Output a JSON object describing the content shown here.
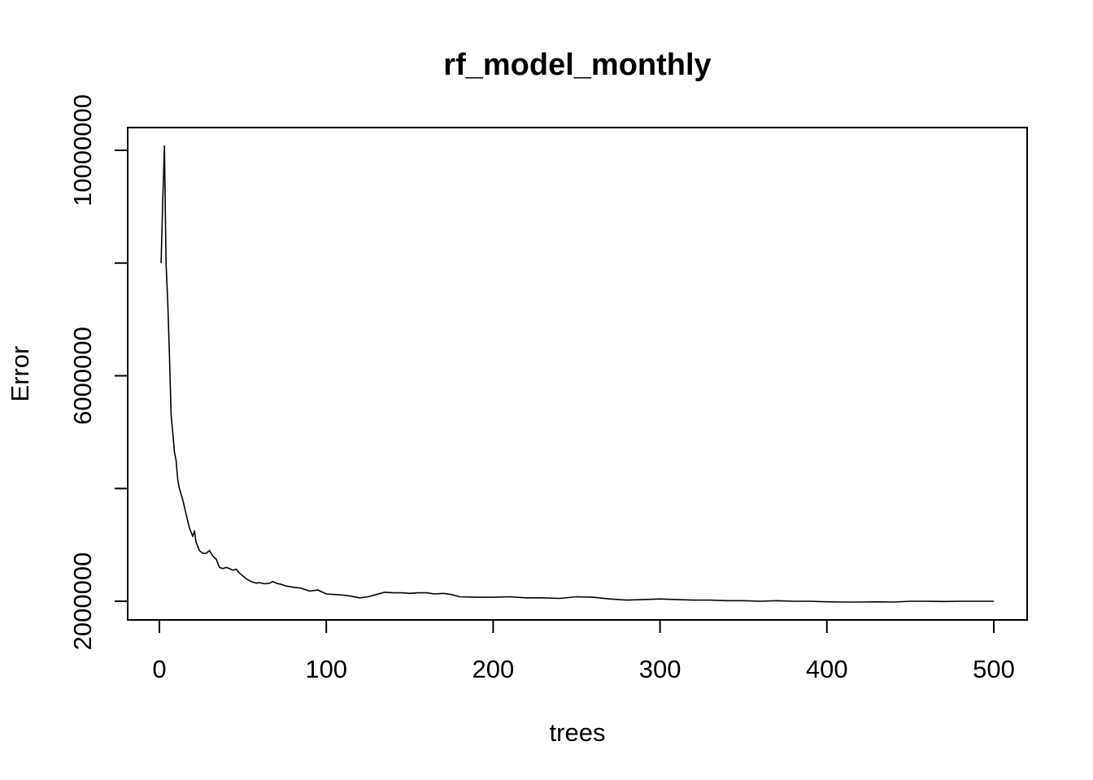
{
  "chart_data": {
    "type": "line",
    "title": "rf_model_monthly",
    "xlabel": "trees",
    "ylabel": "Error",
    "xlim": [
      0,
      500
    ],
    "ylim": [
      2000000,
      10000000
    ],
    "x_ticks": [
      0,
      100,
      200,
      300,
      400,
      500
    ],
    "x_tick_labels": [
      "0",
      "100",
      "200",
      "300",
      "400",
      "500"
    ],
    "y_ticks": [
      2000000,
      4000000,
      6000000,
      8000000,
      10000000
    ],
    "y_tick_labels": [
      "2000000",
      "",
      "6000000",
      "",
      "10000000"
    ],
    "grid": false,
    "legend": "none",
    "series": [
      {
        "x": [
          1,
          2,
          3,
          4,
          5,
          6,
          7,
          8,
          9,
          10,
          11,
          12,
          14,
          16,
          18,
          20,
          21,
          22,
          24,
          26,
          28,
          30,
          32,
          34,
          36,
          38,
          40,
          42,
          44,
          46,
          48,
          50,
          52,
          55,
          58,
          60,
          63,
          66,
          68,
          70,
          73,
          76,
          80,
          85,
          90,
          95,
          100,
          105,
          110,
          115,
          120,
          125,
          130,
          135,
          140,
          145,
          150,
          155,
          160,
          165,
          170,
          175,
          180,
          190,
          200,
          210,
          220,
          230,
          240,
          250,
          260,
          270,
          280,
          290,
          300,
          310,
          320,
          330,
          340,
          350,
          360,
          370,
          380,
          390,
          400,
          410,
          420,
          430,
          440,
          450,
          460,
          470,
          480,
          490,
          500
        ],
        "y": [
          8000000,
          9100000,
          10080000,
          8000000,
          7300000,
          6400000,
          5300000,
          5000000,
          4650000,
          4500000,
          4150000,
          4000000,
          3800000,
          3550000,
          3300000,
          3150000,
          3250000,
          3050000,
          2900000,
          2850000,
          2850000,
          2900000,
          2800000,
          2750000,
          2600000,
          2580000,
          2600000,
          2580000,
          2550000,
          2570000,
          2500000,
          2450000,
          2400000,
          2350000,
          2320000,
          2330000,
          2310000,
          2320000,
          2350000,
          2320000,
          2300000,
          2270000,
          2250000,
          2230000,
          2180000,
          2200000,
          2130000,
          2120000,
          2110000,
          2090000,
          2060000,
          2080000,
          2120000,
          2160000,
          2150000,
          2150000,
          2140000,
          2150000,
          2150000,
          2130000,
          2140000,
          2120000,
          2080000,
          2070000,
          2070000,
          2080000,
          2060000,
          2060000,
          2050000,
          2080000,
          2070000,
          2040000,
          2020000,
          2030000,
          2040000,
          2030000,
          2020000,
          2020000,
          2010000,
          2010000,
          2000000,
          2010000,
          2000000,
          2000000,
          1990000,
          1985000,
          1985000,
          1990000,
          1985000,
          2000000,
          2000000,
          1995000,
          2000000,
          2000000,
          2000000
        ]
      }
    ]
  }
}
